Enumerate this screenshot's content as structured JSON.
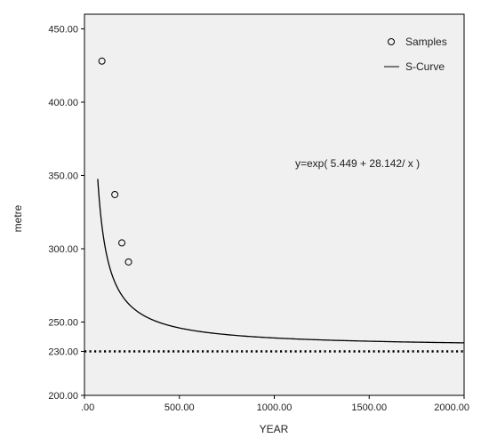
{
  "chart_data": {
    "type": "scatter",
    "xlabel": "YEAR",
    "ylabel": "metre",
    "xlim": [
      0,
      2000
    ],
    "ylim": [
      200,
      460
    ],
    "x_ticks": [
      {
        "value": 0,
        "label": ".00"
      },
      {
        "value": 500,
        "label": "500.00"
      },
      {
        "value": 1000,
        "label": "1000.00"
      },
      {
        "value": 1500,
        "label": "1500.00"
      },
      {
        "value": 2000,
        "label": "2000.00"
      }
    ],
    "y_ticks": [
      {
        "value": 200,
        "label": "200.00"
      },
      {
        "value": 230,
        "label": "230.00"
      },
      {
        "value": 250,
        "label": "250.00"
      },
      {
        "value": 300,
        "label": "300.00"
      },
      {
        "value": 350,
        "label": "350.00"
      },
      {
        "value": 400,
        "label": "400.00"
      },
      {
        "value": 450,
        "label": "450.00"
      }
    ],
    "series": [
      {
        "name": "Samples",
        "kind": "points",
        "marker": "open-circle",
        "x": [
          92,
          160,
          197,
          232
        ],
        "y": [
          428,
          337,
          304,
          291
        ]
      },
      {
        "name": "S-Curve",
        "kind": "fitted-line",
        "model": "exp(a + b/x)",
        "a": 5.449,
        "b": 28.142,
        "x_range": [
          70,
          2000
        ]
      },
      {
        "name": "",
        "kind": "reference-line",
        "style": "dotted",
        "y": 230
      }
    ],
    "annotations": [
      {
        "text": "y=exp( 5.449 + 28.142/ x )"
      }
    ],
    "legend_position": "top-right",
    "grid": false,
    "plot_background": "#f0f0f0",
    "line_color": "#000000"
  }
}
